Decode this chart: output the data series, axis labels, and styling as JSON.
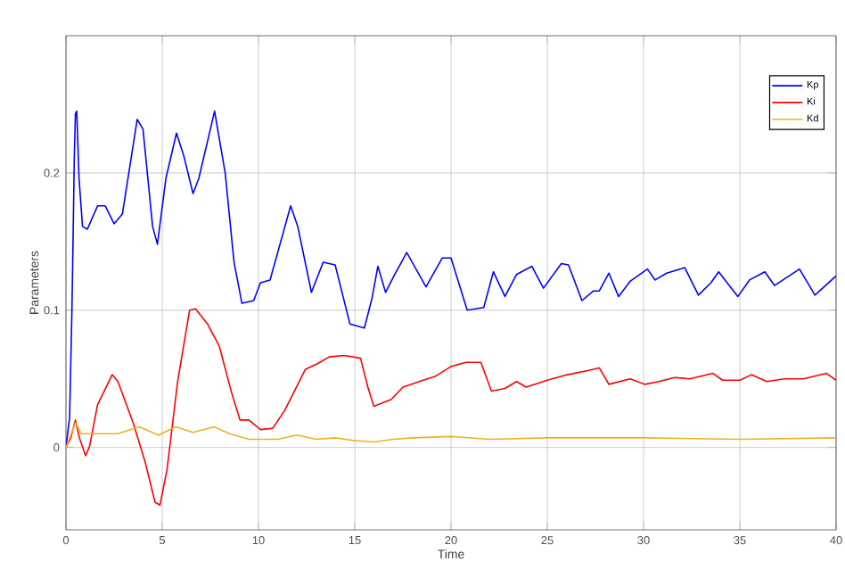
{
  "chart_data": {
    "type": "line",
    "xlabel": "Time",
    "ylabel": "Parameters",
    "xlim": [
      0,
      40
    ],
    "ylim": [
      -0.06,
      0.3
    ],
    "xticks": [
      0,
      5,
      10,
      15,
      20,
      25,
      30,
      35,
      40
    ],
    "yticks": [
      0,
      0.1,
      0.2
    ],
    "grid": true,
    "legend": "top right",
    "series": [
      {
        "name": "Kp",
        "color": "#0000ff",
        "x": [
          0,
          0.19,
          0.31,
          0.37,
          0.43,
          0.49,
          0.56,
          0.68,
          0.86,
          1.11,
          1.64,
          2.04,
          2.5,
          2.93,
          3.7,
          4.0,
          4.5,
          4.75,
          5.19,
          5.74,
          6.11,
          6.6,
          6.9,
          7.72,
          8.27,
          8.73,
          9.14,
          9.75,
          10.1,
          10.6,
          11.67,
          12.04,
          12.75,
          13.36,
          13.98,
          14.75,
          15.5,
          15.9,
          16.2,
          16.6,
          17.07,
          17.7,
          18.7,
          19.54,
          20,
          20.84,
          21.7,
          22.2,
          22.8,
          23.4,
          24.2,
          24.8,
          25.73,
          26.1,
          26.8,
          27.4,
          27.7,
          28.2,
          28.7,
          29.3,
          30.2,
          30.6,
          31.2,
          32.14,
          32.85,
          33.5,
          33.9,
          34.9,
          35.5,
          36.3,
          36.8,
          38.1,
          38.9,
          40
        ],
        "values": [
          0,
          0.022,
          0.1,
          0.152,
          0.209,
          0.243,
          0.245,
          0.196,
          0.161,
          0.159,
          0.176,
          0.176,
          0.163,
          0.17,
          0.239,
          0.232,
          0.161,
          0.148,
          0.196,
          0.229,
          0.213,
          0.185,
          0.196,
          0.245,
          0.2,
          0.135,
          0.105,
          0.107,
          0.12,
          0.122,
          0.176,
          0.161,
          0.113,
          0.135,
          0.133,
          0.09,
          0.087,
          0.109,
          0.132,
          0.113,
          0.126,
          0.142,
          0.117,
          0.138,
          0.138,
          0.1,
          0.102,
          0.128,
          0.11,
          0.126,
          0.132,
          0.116,
          0.134,
          0.133,
          0.107,
          0.114,
          0.114,
          0.127,
          0.11,
          0.121,
          0.13,
          0.122,
          0.127,
          0.131,
          0.111,
          0.12,
          0.128,
          0.11,
          0.122,
          0.128,
          0.118,
          0.13,
          0.111,
          0.125
        ]
      },
      {
        "name": "Ki",
        "color": "#ff0000",
        "x": [
          0,
          0.25,
          0.49,
          0.7,
          1.02,
          1.23,
          1.64,
          2.4,
          2.7,
          3.49,
          4.1,
          4.63,
          4.88,
          5.25,
          5.8,
          6.42,
          6.73,
          7.35,
          7.96,
          8.6,
          9.04,
          9.5,
          10.1,
          10.74,
          11.36,
          12.44,
          13.06,
          13.67,
          14.44,
          15.3,
          15.68,
          15.99,
          16.9,
          17.5,
          18.76,
          19.2,
          20,
          20.77,
          21.55,
          22.1,
          22.8,
          23.4,
          23.9,
          25,
          26.04,
          27.1,
          27.7,
          28.2,
          29.3,
          30.06,
          30.8,
          31.6,
          32.4,
          33.6,
          34.1,
          35,
          35.6,
          36.4,
          37.3,
          38.3,
          39.5,
          40
        ],
        "values": [
          0,
          0.007,
          0.02,
          0.007,
          -0.006,
          0.001,
          0.031,
          0.053,
          0.048,
          0.018,
          -0.01,
          -0.04,
          -0.042,
          -0.016,
          0.048,
          0.1,
          0.101,
          0.09,
          0.074,
          0.04,
          0.02,
          0.02,
          0.013,
          0.014,
          0.027,
          0.057,
          0.061,
          0.066,
          0.067,
          0.065,
          0.044,
          0.03,
          0.035,
          0.044,
          0.05,
          0.052,
          0.059,
          0.062,
          0.062,
          0.041,
          0.043,
          0.048,
          0.044,
          0.049,
          0.053,
          0.056,
          0.058,
          0.046,
          0.05,
          0.046,
          0.048,
          0.051,
          0.05,
          0.054,
          0.049,
          0.049,
          0.053,
          0.048,
          0.05,
          0.05,
          0.054,
          0.049
        ]
      },
      {
        "name": "Kd",
        "color": "#edb120",
        "x": [
          0,
          0.5,
          0.8,
          1.5,
          2.7,
          3.8,
          4.8,
          5.7,
          6.6,
          7.7,
          8.5,
          9.5,
          11,
          12,
          13,
          14,
          15,
          16,
          17,
          18,
          20,
          22,
          25,
          30,
          35,
          40
        ],
        "values": [
          0,
          0.018,
          0.01,
          0.01,
          0.01,
          0.015,
          0.009,
          0.015,
          0.011,
          0.015,
          0.01,
          0.006,
          0.006,
          0.009,
          0.006,
          0.007,
          0.005,
          0.004,
          0.006,
          0.007,
          0.008,
          0.006,
          0.007,
          0.007,
          0.006,
          0.007
        ]
      }
    ]
  }
}
